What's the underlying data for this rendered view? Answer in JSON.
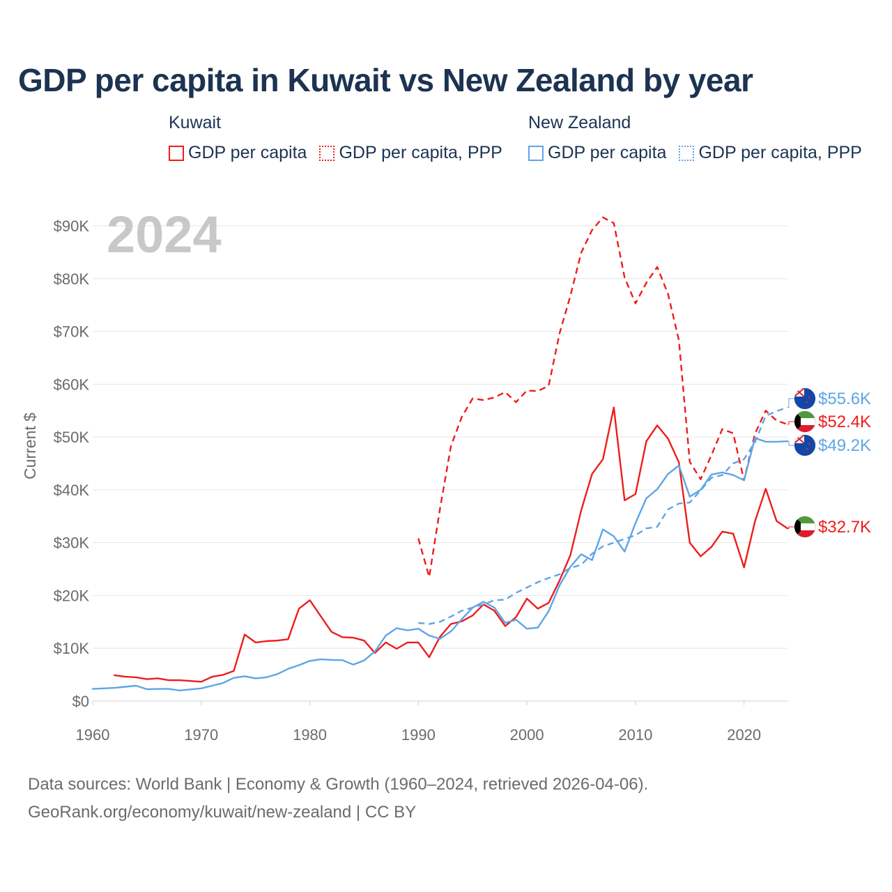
{
  "colors": {
    "kuwait": "#ee1c1c",
    "new_zealand": "#5ea5e6",
    "title": "#1c3352",
    "muted": "#6b6b6b",
    "grid": "#e6e6e6",
    "year": "#c8c8c8"
  },
  "legend": {
    "groups": [
      {
        "name": "Kuwait",
        "items": [
          {
            "label": "GDP per capita",
            "style": "solid"
          },
          {
            "label": "GDP per capita, PPP",
            "style": "dotted"
          }
        ]
      },
      {
        "name": "New Zealand",
        "items": [
          {
            "label": "GDP per capita",
            "style": "solid"
          },
          {
            "label": "GDP per capita, PPP",
            "style": "dotted"
          }
        ]
      }
    ]
  },
  "sources": {
    "line1": "Data sources: World Bank | Economy & Growth (1960–2024, retrieved 2026-04-06).",
    "line2": "GeoRank.org/economy/kuwait/new-zealand | CC BY"
  },
  "chart_data": {
    "type": "line",
    "title": "GDP per capita in Kuwait vs New Zealand by year",
    "ylabel": "Current $",
    "year_label": "2024",
    "xlim": [
      1960,
      2024
    ],
    "ylim": [
      0,
      90000
    ],
    "xticks": [
      {
        "value": 1960,
        "label": "1960"
      },
      {
        "value": 1970,
        "label": "1970"
      },
      {
        "value": 1980,
        "label": "1980"
      },
      {
        "value": 1990,
        "label": "1990"
      },
      {
        "value": 2000,
        "label": "2000"
      },
      {
        "value": 2010,
        "label": "2010"
      },
      {
        "value": 2020,
        "label": "2020"
      }
    ],
    "yticks": [
      {
        "value": 0,
        "label": "$0"
      },
      {
        "value": 10000,
        "label": "$10K"
      },
      {
        "value": 20000,
        "label": "$20K"
      },
      {
        "value": 30000,
        "label": "$30K"
      },
      {
        "value": 40000,
        "label": "$40K"
      },
      {
        "value": 50000,
        "label": "$50K"
      },
      {
        "value": 60000,
        "label": "$60K"
      },
      {
        "value": 70000,
        "label": "$70K"
      },
      {
        "value": 80000,
        "label": "$80K"
      },
      {
        "value": 90000,
        "label": "$90K"
      }
    ],
    "series": [
      {
        "name": "Kuwait GDP per capita",
        "country": "kuwait",
        "style": "solid",
        "color": "#ee1c1c",
        "end_label": "$32.7K",
        "end_value": 32700,
        "points": [
          [
            1962,
            4900
          ],
          [
            1963,
            4600
          ],
          [
            1964,
            4500
          ],
          [
            1965,
            4150
          ],
          [
            1966,
            4300
          ],
          [
            1967,
            3950
          ],
          [
            1968,
            3950
          ],
          [
            1969,
            3800
          ],
          [
            1970,
            3650
          ],
          [
            1971,
            4600
          ],
          [
            1972,
            4950
          ],
          [
            1973,
            5700
          ],
          [
            1974,
            12600
          ],
          [
            1975,
            11100
          ],
          [
            1976,
            11350
          ],
          [
            1977,
            11450
          ],
          [
            1978,
            11700
          ],
          [
            1979,
            17500
          ],
          [
            1980,
            19100
          ],
          [
            1981,
            16100
          ],
          [
            1982,
            13100
          ],
          [
            1983,
            12100
          ],
          [
            1984,
            12000
          ],
          [
            1985,
            11450
          ],
          [
            1986,
            9100
          ],
          [
            1987,
            11100
          ],
          [
            1988,
            9900
          ],
          [
            1989,
            11100
          ],
          [
            1990,
            11100
          ],
          [
            1991,
            8300
          ],
          [
            1992,
            12200
          ],
          [
            1993,
            14600
          ],
          [
            1994,
            15100
          ],
          [
            1995,
            16200
          ],
          [
            1996,
            18300
          ],
          [
            1997,
            17100
          ],
          [
            1998,
            14200
          ],
          [
            1999,
            15900
          ],
          [
            2000,
            19400
          ],
          [
            2001,
            17500
          ],
          [
            2002,
            18600
          ],
          [
            2003,
            22800
          ],
          [
            2004,
            27600
          ],
          [
            2005,
            36100
          ],
          [
            2006,
            43000
          ],
          [
            2007,
            45800
          ],
          [
            2008,
            55600
          ],
          [
            2009,
            38000
          ],
          [
            2010,
            39200
          ],
          [
            2011,
            49200
          ],
          [
            2012,
            52200
          ],
          [
            2013,
            49700
          ],
          [
            2014,
            45200
          ],
          [
            2015,
            30000
          ],
          [
            2016,
            27400
          ],
          [
            2017,
            29200
          ],
          [
            2018,
            32100
          ],
          [
            2019,
            31700
          ],
          [
            2020,
            25300
          ],
          [
            2021,
            34000
          ],
          [
            2022,
            40200
          ],
          [
            2023,
            34100
          ],
          [
            2024,
            32700
          ]
        ]
      },
      {
        "name": "Kuwait GDP per capita, PPP",
        "country": "kuwait",
        "style": "dashed",
        "color": "#ee1c1c",
        "end_label": "$52.4K",
        "end_value": 52400,
        "points": [
          [
            1990,
            30800
          ],
          [
            1991,
            23500
          ],
          [
            1992,
            36500
          ],
          [
            1993,
            48300
          ],
          [
            1994,
            53800
          ],
          [
            1995,
            57300
          ],
          [
            1996,
            57000
          ],
          [
            1997,
            57500
          ],
          [
            1998,
            58500
          ],
          [
            1999,
            56600
          ],
          [
            2000,
            58800
          ],
          [
            2001,
            58700
          ],
          [
            2002,
            59700
          ],
          [
            2003,
            69600
          ],
          [
            2004,
            76700
          ],
          [
            2005,
            84900
          ],
          [
            2006,
            89200
          ],
          [
            2007,
            91600
          ],
          [
            2008,
            90500
          ],
          [
            2009,
            80200
          ],
          [
            2010,
            75300
          ],
          [
            2011,
            79200
          ],
          [
            2012,
            82200
          ],
          [
            2013,
            77100
          ],
          [
            2014,
            68300
          ],
          [
            2015,
            45300
          ],
          [
            2016,
            42000
          ],
          [
            2017,
            46600
          ],
          [
            2018,
            51500
          ],
          [
            2019,
            50700
          ],
          [
            2020,
            41800
          ],
          [
            2021,
            50600
          ],
          [
            2022,
            55000
          ],
          [
            2023,
            53100
          ],
          [
            2024,
            52400
          ]
        ]
      },
      {
        "name": "New Zealand GDP per capita",
        "country": "new_zealand",
        "style": "solid",
        "color": "#5ea5e6",
        "end_label": "$49.2K",
        "end_value": 49200,
        "points": [
          [
            1960,
            2300
          ],
          [
            1961,
            2400
          ],
          [
            1962,
            2500
          ],
          [
            1963,
            2700
          ],
          [
            1964,
            2900
          ],
          [
            1965,
            2250
          ],
          [
            1966,
            2300
          ],
          [
            1967,
            2300
          ],
          [
            1968,
            2000
          ],
          [
            1969,
            2200
          ],
          [
            1970,
            2400
          ],
          [
            1971,
            2900
          ],
          [
            1972,
            3400
          ],
          [
            1973,
            4400
          ],
          [
            1974,
            4700
          ],
          [
            1975,
            4300
          ],
          [
            1976,
            4500
          ],
          [
            1977,
            5100
          ],
          [
            1978,
            6100
          ],
          [
            1979,
            6800
          ],
          [
            1980,
            7600
          ],
          [
            1981,
            7900
          ],
          [
            1982,
            7800
          ],
          [
            1983,
            7750
          ],
          [
            1984,
            6900
          ],
          [
            1985,
            7700
          ],
          [
            1986,
            9400
          ],
          [
            1987,
            12400
          ],
          [
            1988,
            13800
          ],
          [
            1989,
            13400
          ],
          [
            1990,
            13700
          ],
          [
            1991,
            12400
          ],
          [
            1992,
            11800
          ],
          [
            1993,
            13200
          ],
          [
            1994,
            15500
          ],
          [
            1995,
            17700
          ],
          [
            1996,
            18800
          ],
          [
            1997,
            17700
          ],
          [
            1998,
            14800
          ],
          [
            1999,
            15400
          ],
          [
            2000,
            13700
          ],
          [
            2001,
            13900
          ],
          [
            2002,
            17000
          ],
          [
            2003,
            21900
          ],
          [
            2004,
            25400
          ],
          [
            2005,
            27800
          ],
          [
            2006,
            26700
          ],
          [
            2007,
            32500
          ],
          [
            2008,
            31200
          ],
          [
            2009,
            28300
          ],
          [
            2010,
            33700
          ],
          [
            2011,
            38400
          ],
          [
            2012,
            40100
          ],
          [
            2013,
            43000
          ],
          [
            2014,
            44600
          ],
          [
            2015,
            38700
          ],
          [
            2016,
            40000
          ],
          [
            2017,
            42900
          ],
          [
            2018,
            43300
          ],
          [
            2019,
            42800
          ],
          [
            2020,
            41800
          ],
          [
            2021,
            49800
          ],
          [
            2022,
            49100
          ],
          [
            2023,
            49100
          ],
          [
            2024,
            49200
          ]
        ]
      },
      {
        "name": "New Zealand GDP per capita, PPP",
        "country": "new_zealand",
        "style": "dashed",
        "color": "#5ea5e6",
        "end_label": "$55.6K",
        "end_value": 55600,
        "points": [
          [
            1990,
            14800
          ],
          [
            1991,
            14600
          ],
          [
            1992,
            15000
          ],
          [
            1993,
            16000
          ],
          [
            1994,
            17100
          ],
          [
            1995,
            17700
          ],
          [
            1996,
            18300
          ],
          [
            1997,
            19100
          ],
          [
            1998,
            19200
          ],
          [
            1999,
            20500
          ],
          [
            2000,
            21500
          ],
          [
            2001,
            22500
          ],
          [
            2002,
            23300
          ],
          [
            2003,
            24000
          ],
          [
            2004,
            25200
          ],
          [
            2005,
            25800
          ],
          [
            2006,
            27900
          ],
          [
            2007,
            29300
          ],
          [
            2008,
            30000
          ],
          [
            2009,
            30700
          ],
          [
            2010,
            31400
          ],
          [
            2011,
            32700
          ],
          [
            2012,
            33000
          ],
          [
            2013,
            36300
          ],
          [
            2014,
            37400
          ],
          [
            2015,
            37600
          ],
          [
            2016,
            39900
          ],
          [
            2017,
            42300
          ],
          [
            2018,
            42800
          ],
          [
            2019,
            45000
          ],
          [
            2020,
            45800
          ],
          [
            2021,
            49000
          ],
          [
            2022,
            54000
          ],
          [
            2023,
            54900
          ],
          [
            2024,
            55600
          ]
        ]
      }
    ]
  }
}
